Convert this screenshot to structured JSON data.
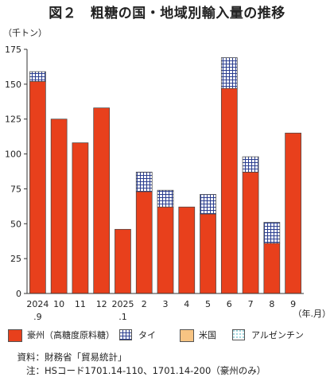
{
  "title": "図２　粗糖の国・地域別輸入量の推移",
  "chart_data": {
    "type": "bar",
    "stacked": true,
    "unit_label": "（千トン）",
    "x_unit_label": "（年.月）",
    "categories": [
      {
        "top": "2024",
        "bottom": ".9"
      },
      {
        "top": "10",
        "bottom": ""
      },
      {
        "top": "11",
        "bottom": ""
      },
      {
        "top": "12",
        "bottom": ""
      },
      {
        "top": "2025",
        "bottom": ".1"
      },
      {
        "top": "2",
        "bottom": ""
      },
      {
        "top": "3",
        "bottom": ""
      },
      {
        "top": "4",
        "bottom": ""
      },
      {
        "top": "5",
        "bottom": ""
      },
      {
        "top": "6",
        "bottom": ""
      },
      {
        "top": "7",
        "bottom": ""
      },
      {
        "top": "8",
        "bottom": ""
      },
      {
        "top": "9",
        "bottom": ""
      }
    ],
    "ylim": [
      0,
      175
    ],
    "yticks": [
      0,
      25,
      50,
      75,
      100,
      125,
      150,
      175
    ],
    "grid": false,
    "legend_position": "bottom",
    "series": [
      {
        "name": "豪州（高糖度原料糖）",
        "color": "#e8401c",
        "pattern": "solid",
        "values": [
          152,
          125,
          108,
          133,
          46,
          73,
          62,
          62,
          57,
          147,
          87,
          36,
          115
        ]
      },
      {
        "name": "タイ",
        "color": "#2a3d8f",
        "pattern": "grid",
        "values": [
          7,
          0,
          0,
          0,
          0,
          14,
          12,
          0,
          14,
          22,
          11,
          15,
          0
        ]
      },
      {
        "name": "米国",
        "color": "#f7c483",
        "pattern": "solid",
        "values": [
          0,
          0,
          0,
          0,
          0,
          0,
          0,
          0,
          0,
          0,
          0,
          0,
          0
        ]
      },
      {
        "name": "アルゼンチン",
        "color": "#5fbcc8",
        "pattern": "dots",
        "values": [
          0,
          0,
          0,
          0,
          0,
          0,
          0,
          0,
          0,
          0,
          0,
          0,
          0
        ]
      }
    ]
  },
  "notes": {
    "source_prefix": "資料：",
    "source_text": "財務省「貿易統計」",
    "note_prefix": "注：",
    "note_text": "HSコード1701.14-110、1701.14-200（豪州のみ）"
  }
}
